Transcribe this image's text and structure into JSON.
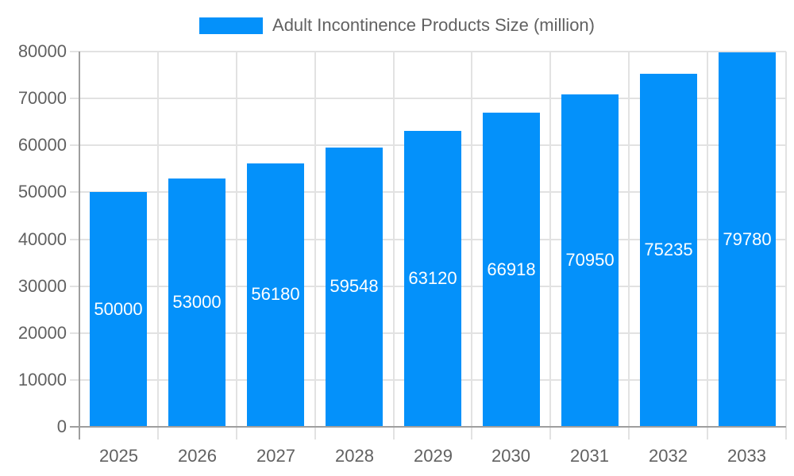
{
  "chart_data": {
    "type": "bar",
    "title": "Adult Incontinence Products Size (million)",
    "legend": {
      "position": "top",
      "entries": [
        {
          "label": "Adult Incontinence Products Size (million)",
          "swatch_color": "#0491fa"
        }
      ]
    },
    "categories": [
      "2025",
      "2026",
      "2027",
      "2028",
      "2029",
      "2030",
      "2031",
      "2032",
      "2033"
    ],
    "values": [
      50000,
      53000,
      56180,
      59548,
      63120,
      66918,
      70950,
      75235,
      79780
    ],
    "value_labels": [
      "50000",
      "53000",
      "56180",
      "59548",
      "63120",
      "66918",
      "70950",
      "75235",
      "79780"
    ],
    "xlabel": "",
    "ylabel": "",
    "ylim": [
      0,
      80000
    ],
    "yticks": [
      0,
      10000,
      20000,
      30000,
      40000,
      50000,
      60000,
      70000,
      80000
    ],
    "ytick_labels": [
      "0",
      "10000",
      "20000",
      "30000",
      "40000",
      "50000",
      "60000",
      "70000",
      "80000"
    ],
    "grid": true,
    "colors": {
      "bar": "#0491fa",
      "bar_label_text": "#ffffff",
      "axis_line": "#9e9e9e",
      "gridline": "#e2e2e2",
      "tick_text": "#616161",
      "legend_text": "#616161",
      "background": "#ffffff"
    }
  }
}
